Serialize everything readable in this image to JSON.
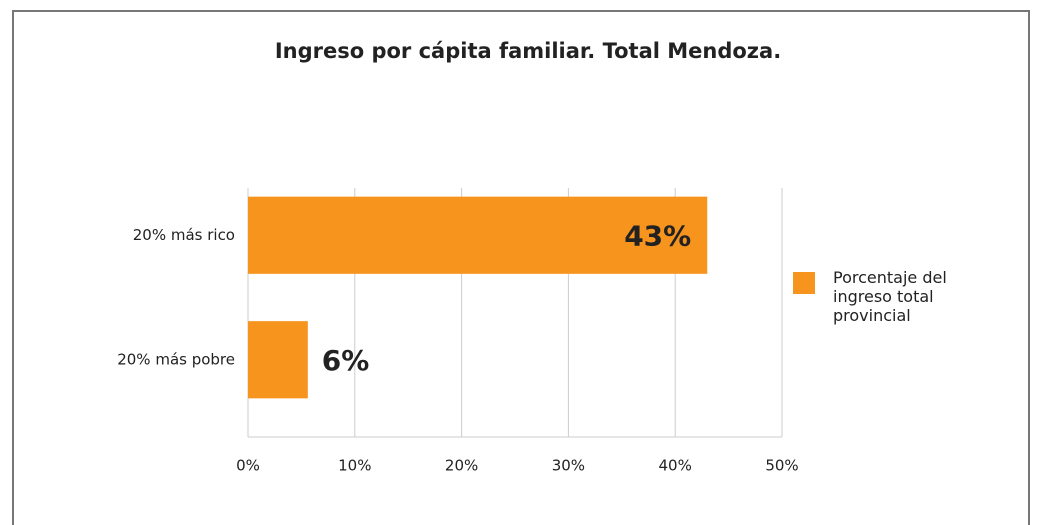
{
  "chart_data": {
    "type": "hbar",
    "title": "Ingreso por cápita familiar. Total Mendoza.",
    "categories": [
      "20% más rico",
      "20% más pobre"
    ],
    "series": [
      {
        "name": "Porcentaje del ingreso total provincial",
        "color": "#f7941d",
        "values": [
          43,
          5.6
        ],
        "value_labels": [
          "43%",
          "6%"
        ]
      }
    ],
    "xlim": [
      0,
      50
    ],
    "xticks": [
      {
        "value": 0,
        "label": "0%"
      },
      {
        "value": 10,
        "label": "10%"
      },
      {
        "value": 20,
        "label": "20%"
      },
      {
        "value": 30,
        "label": "30%"
      },
      {
        "value": 40,
        "label": "40%"
      },
      {
        "value": 50,
        "label": "50%"
      }
    ],
    "grid": true,
    "legend": "right"
  }
}
